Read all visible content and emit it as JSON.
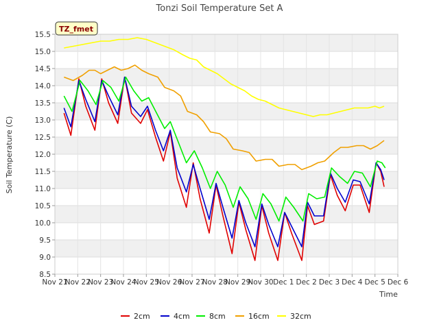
{
  "chart_data": {
    "type": "line",
    "title": "Tonzi Soil Temperature Set A",
    "xlabel": "Time",
    "ylabel": "Soil Temperature (C)",
    "badge": "TZ_fmet",
    "xlim": [
      0,
      15
    ],
    "ylim": [
      8.5,
      15.5
    ],
    "yticks": [
      8.5,
      9.0,
      9.5,
      10.0,
      10.5,
      11.0,
      11.5,
      12.0,
      12.5,
      13.0,
      13.5,
      14.0,
      14.5,
      15.0,
      15.5
    ],
    "ytick_labels": [
      "8.5",
      "9.0",
      "9.5",
      "10.0",
      "10.5",
      "11.0",
      "11.5",
      "12.0",
      "12.5",
      "13.0",
      "13.5",
      "14.0",
      "14.5",
      "15.0",
      "15.5"
    ],
    "xticks": [
      0,
      1,
      2,
      3,
      4,
      5,
      6,
      7,
      8,
      9,
      10,
      11,
      12,
      13,
      14,
      15
    ],
    "xtick_labels": [
      "Nov 21",
      "Nov 22",
      "Nov 23",
      "Nov 24",
      "Nov 25",
      "Nov 26",
      "Nov 27",
      "Nov 28",
      "Nov 29",
      "Nov 30",
      "Dec 1",
      "Dec 2",
      "Dec 3",
      "Dec 4",
      "Dec 5",
      "Dec 6"
    ],
    "grid": true,
    "legend_position": "bottom-center",
    "series": [
      {
        "name": "2cm",
        "color": "#e00000",
        "points": [
          [
            0.4,
            13.2
          ],
          [
            0.7,
            12.55
          ],
          [
            1.05,
            14.2
          ],
          [
            1.35,
            13.4
          ],
          [
            1.75,
            12.7
          ],
          [
            2.05,
            14.2
          ],
          [
            2.35,
            13.5
          ],
          [
            2.75,
            12.9
          ],
          [
            3.05,
            14.25
          ],
          [
            3.35,
            13.2
          ],
          [
            3.75,
            12.9
          ],
          [
            4.05,
            13.3
          ],
          [
            4.4,
            12.5
          ],
          [
            4.75,
            11.8
          ],
          [
            5.05,
            12.65
          ],
          [
            5.35,
            11.3
          ],
          [
            5.75,
            10.45
          ],
          [
            6.05,
            11.75
          ],
          [
            6.35,
            10.7
          ],
          [
            6.75,
            9.7
          ],
          [
            7.05,
            11.1
          ],
          [
            7.35,
            10.2
          ],
          [
            7.75,
            9.1
          ],
          [
            8.05,
            10.6
          ],
          [
            8.35,
            9.8
          ],
          [
            8.75,
            8.9
          ],
          [
            9.05,
            10.5
          ],
          [
            9.35,
            9.7
          ],
          [
            9.75,
            8.9
          ],
          [
            10.05,
            10.3
          ],
          [
            10.35,
            9.7
          ],
          [
            10.8,
            8.9
          ],
          [
            11.05,
            10.5
          ],
          [
            11.35,
            9.95
          ],
          [
            11.75,
            10.05
          ],
          [
            12.05,
            11.4
          ],
          [
            12.35,
            10.8
          ],
          [
            12.7,
            10.35
          ],
          [
            13.05,
            11.1
          ],
          [
            13.35,
            11.1
          ],
          [
            13.75,
            10.3
          ],
          [
            14.05,
            11.75
          ],
          [
            14.25,
            11.5
          ],
          [
            14.4,
            11.05
          ]
        ]
      },
      {
        "name": "4cm",
        "color": "#0000cc",
        "points": [
          [
            0.4,
            13.35
          ],
          [
            0.7,
            12.8
          ],
          [
            1.05,
            14.15
          ],
          [
            1.35,
            13.6
          ],
          [
            1.75,
            12.95
          ],
          [
            2.05,
            14.15
          ],
          [
            2.35,
            13.7
          ],
          [
            2.75,
            13.15
          ],
          [
            3.05,
            14.25
          ],
          [
            3.35,
            13.4
          ],
          [
            3.75,
            13.1
          ],
          [
            4.05,
            13.4
          ],
          [
            4.4,
            12.7
          ],
          [
            4.75,
            12.1
          ],
          [
            5.05,
            12.7
          ],
          [
            5.35,
            11.6
          ],
          [
            5.75,
            10.9
          ],
          [
            6.05,
            11.7
          ],
          [
            6.35,
            11.0
          ],
          [
            6.75,
            10.1
          ],
          [
            7.05,
            11.15
          ],
          [
            7.35,
            10.45
          ],
          [
            7.75,
            9.55
          ],
          [
            8.05,
            10.65
          ],
          [
            8.35,
            10.0
          ],
          [
            8.75,
            9.3
          ],
          [
            9.05,
            10.55
          ],
          [
            9.35,
            9.95
          ],
          [
            9.75,
            9.3
          ],
          [
            10.05,
            10.3
          ],
          [
            10.35,
            9.9
          ],
          [
            10.8,
            9.3
          ],
          [
            11.05,
            10.6
          ],
          [
            11.35,
            10.2
          ],
          [
            11.75,
            10.2
          ],
          [
            12.05,
            11.45
          ],
          [
            12.35,
            11.0
          ],
          [
            12.7,
            10.6
          ],
          [
            13.05,
            11.25
          ],
          [
            13.35,
            11.2
          ],
          [
            13.75,
            10.55
          ],
          [
            14.05,
            11.75
          ],
          [
            14.25,
            11.55
          ],
          [
            14.4,
            11.25
          ]
        ]
      },
      {
        "name": "8cm",
        "color": "#00ee00",
        "points": [
          [
            0.4,
            13.7
          ],
          [
            0.75,
            13.25
          ],
          [
            1.1,
            14.15
          ],
          [
            1.45,
            13.85
          ],
          [
            1.8,
            13.45
          ],
          [
            2.1,
            14.15
          ],
          [
            2.45,
            13.95
          ],
          [
            2.8,
            13.55
          ],
          [
            3.1,
            14.25
          ],
          [
            3.45,
            13.85
          ],
          [
            3.8,
            13.55
          ],
          [
            4.1,
            13.65
          ],
          [
            4.45,
            13.2
          ],
          [
            4.8,
            12.75
          ],
          [
            5.05,
            12.95
          ],
          [
            5.4,
            12.35
          ],
          [
            5.75,
            11.75
          ],
          [
            6.1,
            12.1
          ],
          [
            6.45,
            11.6
          ],
          [
            6.8,
            11.0
          ],
          [
            7.1,
            11.5
          ],
          [
            7.45,
            11.1
          ],
          [
            7.8,
            10.45
          ],
          [
            8.1,
            11.05
          ],
          [
            8.45,
            10.7
          ],
          [
            8.8,
            10.1
          ],
          [
            9.1,
            10.85
          ],
          [
            9.45,
            10.55
          ],
          [
            9.8,
            10.05
          ],
          [
            10.1,
            10.75
          ],
          [
            10.45,
            10.45
          ],
          [
            10.85,
            10.05
          ],
          [
            11.1,
            10.85
          ],
          [
            11.45,
            10.7
          ],
          [
            11.8,
            10.75
          ],
          [
            12.1,
            11.6
          ],
          [
            12.45,
            11.35
          ],
          [
            12.8,
            11.15
          ],
          [
            13.1,
            11.5
          ],
          [
            13.45,
            11.45
          ],
          [
            13.8,
            11.05
          ],
          [
            14.1,
            11.8
          ],
          [
            14.3,
            11.75
          ],
          [
            14.45,
            11.6
          ]
        ]
      },
      {
        "name": "16cm",
        "color": "#f0a000",
        "points": [
          [
            0.4,
            14.25
          ],
          [
            0.8,
            14.15
          ],
          [
            1.2,
            14.3
          ],
          [
            1.5,
            14.45
          ],
          [
            1.75,
            14.45
          ],
          [
            2.0,
            14.35
          ],
          [
            2.3,
            14.45
          ],
          [
            2.6,
            14.55
          ],
          [
            2.9,
            14.45
          ],
          [
            3.2,
            14.5
          ],
          [
            3.5,
            14.6
          ],
          [
            3.8,
            14.45
          ],
          [
            4.1,
            14.35
          ],
          [
            4.5,
            14.25
          ],
          [
            4.8,
            13.95
          ],
          [
            5.2,
            13.85
          ],
          [
            5.5,
            13.7
          ],
          [
            5.8,
            13.25
          ],
          [
            6.2,
            13.15
          ],
          [
            6.5,
            12.95
          ],
          [
            6.8,
            12.65
          ],
          [
            7.2,
            12.6
          ],
          [
            7.5,
            12.45
          ],
          [
            7.8,
            12.15
          ],
          [
            8.2,
            12.1
          ],
          [
            8.5,
            12.05
          ],
          [
            8.8,
            11.8
          ],
          [
            9.2,
            11.85
          ],
          [
            9.5,
            11.85
          ],
          [
            9.8,
            11.65
          ],
          [
            10.2,
            11.7
          ],
          [
            10.5,
            11.7
          ],
          [
            10.8,
            11.55
          ],
          [
            11.2,
            11.65
          ],
          [
            11.5,
            11.75
          ],
          [
            11.8,
            11.8
          ],
          [
            12.2,
            12.05
          ],
          [
            12.5,
            12.2
          ],
          [
            12.8,
            12.2
          ],
          [
            13.2,
            12.25
          ],
          [
            13.5,
            12.25
          ],
          [
            13.8,
            12.15
          ],
          [
            14.1,
            12.25
          ],
          [
            14.4,
            12.4
          ]
        ]
      },
      {
        "name": "32cm",
        "color": "#ffff00",
        "points": [
          [
            0.4,
            15.1
          ],
          [
            0.8,
            15.15
          ],
          [
            1.2,
            15.2
          ],
          [
            1.6,
            15.25
          ],
          [
            2.0,
            15.3
          ],
          [
            2.4,
            15.3
          ],
          [
            2.8,
            15.35
          ],
          [
            3.2,
            15.35
          ],
          [
            3.6,
            15.4
          ],
          [
            4.0,
            15.35
          ],
          [
            4.4,
            15.25
          ],
          [
            4.8,
            15.15
          ],
          [
            5.2,
            15.05
          ],
          [
            5.6,
            14.9
          ],
          [
            5.9,
            14.8
          ],
          [
            6.2,
            14.75
          ],
          [
            6.5,
            14.55
          ],
          [
            6.8,
            14.45
          ],
          [
            7.1,
            14.35
          ],
          [
            7.4,
            14.2
          ],
          [
            7.7,
            14.05
          ],
          [
            8.0,
            13.95
          ],
          [
            8.3,
            13.85
          ],
          [
            8.6,
            13.7
          ],
          [
            8.9,
            13.6
          ],
          [
            9.2,
            13.55
          ],
          [
            9.5,
            13.45
          ],
          [
            9.8,
            13.35
          ],
          [
            10.1,
            13.3
          ],
          [
            10.4,
            13.25
          ],
          [
            10.7,
            13.2
          ],
          [
            11.0,
            13.15
          ],
          [
            11.3,
            13.1
          ],
          [
            11.6,
            13.15
          ],
          [
            11.9,
            13.15
          ],
          [
            12.2,
            13.2
          ],
          [
            12.5,
            13.25
          ],
          [
            12.8,
            13.3
          ],
          [
            13.1,
            13.35
          ],
          [
            13.4,
            13.35
          ],
          [
            13.7,
            13.35
          ],
          [
            14.0,
            13.4
          ],
          [
            14.2,
            13.35
          ],
          [
            14.4,
            13.4
          ]
        ]
      }
    ]
  }
}
